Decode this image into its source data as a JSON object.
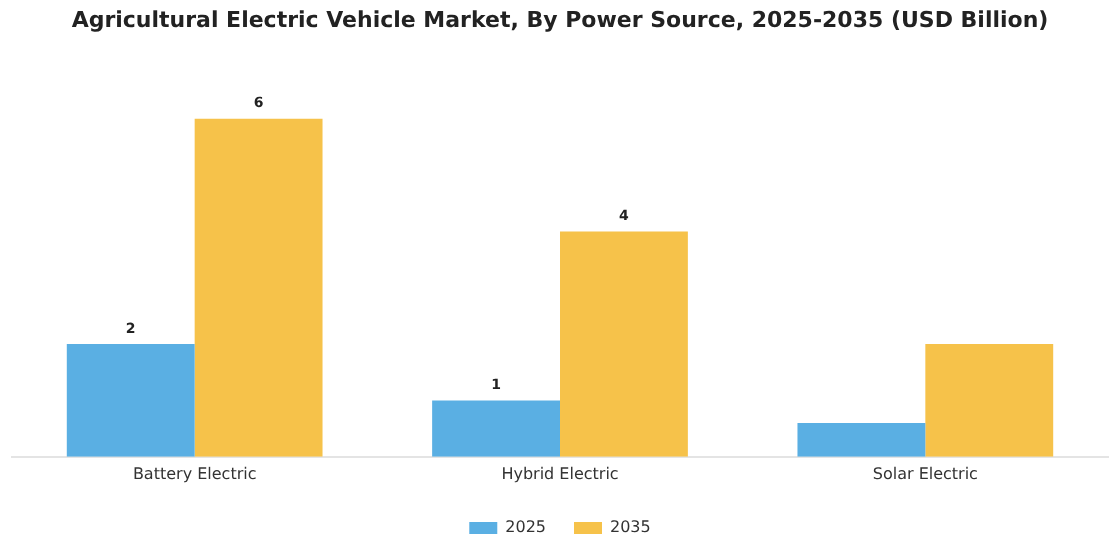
{
  "chart_data": {
    "type": "bar",
    "title": "Agricultural Electric Vehicle Market, By Power Source, 2025-2035 (USD Billion)",
    "categories": [
      "Battery Electric",
      "Hybrid Electric",
      "Solar Electric"
    ],
    "series": [
      {
        "name": "2025",
        "color": "#5aafe3",
        "values": [
          2,
          1,
          0.6
        ],
        "value_labels": [
          "2",
          "1",
          null
        ]
      },
      {
        "name": "2035",
        "color": "#f6c24a",
        "values": [
          6,
          4,
          2
        ],
        "value_labels": [
          "6",
          "4",
          null
        ]
      }
    ],
    "grid": false,
    "legend": "bottom"
  }
}
